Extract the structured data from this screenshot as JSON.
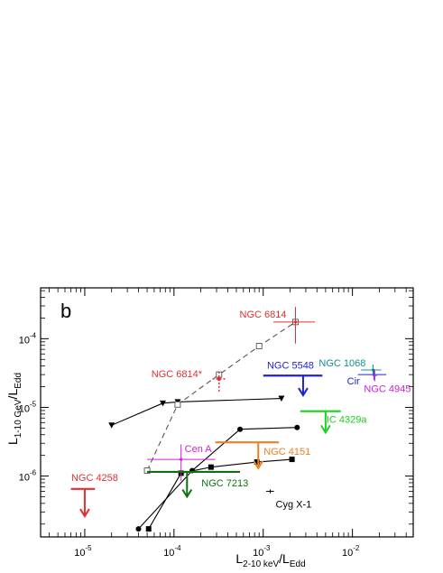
{
  "chart_data": {
    "type": "scatter",
    "panel_label": "b",
    "xlabel": "L",
    "xlabel_sub": "2-10 keV",
    "xlabel_suffix": "/L",
    "xlabel_suffix_sub": "Edd",
    "ylabel": "L",
    "ylabel_sub": "1-10 GeV",
    "ylabel_suffix": "/L",
    "ylabel_suffix_sub": "Edd",
    "xscale": "log",
    "yscale": "log",
    "xlim": [
      3.2e-06,
      0.048
    ],
    "ylim": [
      1.3e-07,
      0.00055
    ],
    "grid": false,
    "x_ticks": [
      {
        "value": 1e-05,
        "base": "10",
        "exp": "-5"
      },
      {
        "value": 0.0001,
        "base": "10",
        "exp": "-4"
      },
      {
        "value": 0.001,
        "base": "10",
        "exp": "-3"
      },
      {
        "value": 0.01,
        "base": "10",
        "exp": "-2"
      }
    ],
    "y_ticks": [
      {
        "value": 1e-06,
        "base": "10",
        "exp": "-6"
      },
      {
        "value": 1e-05,
        "base": "10",
        "exp": "-5"
      },
      {
        "value": 0.0001,
        "base": "10",
        "exp": "-4"
      }
    ],
    "tracks": [
      {
        "marker": "triangle-down",
        "dash": false,
        "x": [
          2e-05,
          7.5e-05,
          0.00011,
          0.0016
        ],
        "y": [
          5.5e-06,
          1.15e-05,
          1.2e-05,
          1.35e-05
        ]
      },
      {
        "marker": "open-square",
        "dash": true,
        "x": [
          5e-05,
          0.00011,
          0.00032,
          0.0009,
          0.0023
        ],
        "y": [
          1.2e-06,
          1.1e-05,
          3e-05,
          7.8e-05,
          0.000175
        ]
      },
      {
        "marker": "circle",
        "dash": false,
        "x": [
          4e-05,
          0.00016,
          0.00055,
          0.0024
        ],
        "y": [
          1.7e-07,
          1.2e-06,
          4.8e-06,
          5.1e-06
        ]
      },
      {
        "marker": "square",
        "dash": false,
        "x": [
          5.2e-05,
          0.00012,
          0.00026,
          0.00085,
          0.0021
        ],
        "y": [
          1.7e-07,
          1.1e-06,
          1.35e-06,
          1.6e-06,
          1.75e-06
        ]
      }
    ],
    "sources": [
      {
        "name": "NGC 6814",
        "color": "#e03030",
        "kind": "errorbar",
        "x": 0.0023,
        "y": 0.000175,
        "xerr": [
          0.0013,
          0.0038
        ],
        "yerr": [
          8.5e-05,
          0.00029
        ]
      },
      {
        "name": "NGC 6814*",
        "color": "#e03030",
        "kind": "dotted",
        "x": 0.00032,
        "y": 2.6e-05,
        "xerr": [
          0.00027,
          0.00039
        ],
        "yerr": [
          1.7e-05,
          3.5e-05
        ]
      },
      {
        "name": "NGC 5548",
        "color": "#2020d8",
        "kind": "upper-limit",
        "x": 0.0028,
        "y": 2.9e-05,
        "xerr": [
          0.001,
          0.0046
        ],
        "arrow_to": 1.5e-05
      },
      {
        "name": "NGC 1068",
        "color": "#109090",
        "kind": "errorbar",
        "x": 0.017,
        "y": 3.5e-05,
        "xerr": [
          0.0125,
          0.021
        ],
        "yerr": [
          3e-05,
          4.2e-05
        ]
      },
      {
        "name": "Cir",
        "color": "#2020d8",
        "kind": "cross",
        "x": 0.0175,
        "y": 3e-05,
        "xerr": [
          0.0115,
          0.024
        ],
        "yerr": [
          2.5e-05,
          3.6e-05
        ]
      },
      {
        "name": "NGC 4945",
        "color": "#d020d0",
        "kind": "cross",
        "x": 0.0178,
        "y": 2.9e-05,
        "xerr": [
          0.0168,
          0.0188
        ],
        "yerr": [
          2.4e-05,
          3.4e-05
        ]
      },
      {
        "name": "IC 4329a",
        "color": "#20d020",
        "kind": "upper-limit",
        "x": 0.005,
        "y": 8.8e-06,
        "xerr": [
          0.0026,
          0.0074
        ],
        "arrow_to": 4.3e-06
      },
      {
        "name": "NGC 4151",
        "color": "#ef8020",
        "kind": "upper-limit",
        "x": 0.00088,
        "y": 3.1e-06,
        "xerr": [
          0.00029,
          0.0015
        ],
        "arrow_to": 1.3e-06
      },
      {
        "name": "Cen A",
        "color": "#d020d0",
        "kind": "errorbar",
        "x": 0.00012,
        "y": 1.75e-06,
        "xerr": [
          5e-05,
          0.00029
        ],
        "yerr": [
          8.5e-07,
          2.9e-06
        ]
      },
      {
        "name": "NGC 7213",
        "color": "#107010",
        "kind": "upper-limit",
        "x": 0.00014,
        "y": 1.15e-06,
        "xerr": [
          5e-05,
          0.00055
        ],
        "arrow_to": 5e-07
      },
      {
        "name": "NGC 4258",
        "color": "#e03030",
        "kind": "upper-limit",
        "x": 1e-05,
        "y": 6.5e-07,
        "xerr": [
          7e-06,
          1.3e-05
        ],
        "arrow_to": 2.6e-07
      },
      {
        "name": "Cyg X-1",
        "color": "#000000",
        "kind": "cross",
        "x": 0.0012,
        "y": 6e-07,
        "xerr": [
          0.00108,
          0.00132
        ],
        "yerr": [
          5.6e-07,
          6.4e-07
        ]
      }
    ]
  }
}
